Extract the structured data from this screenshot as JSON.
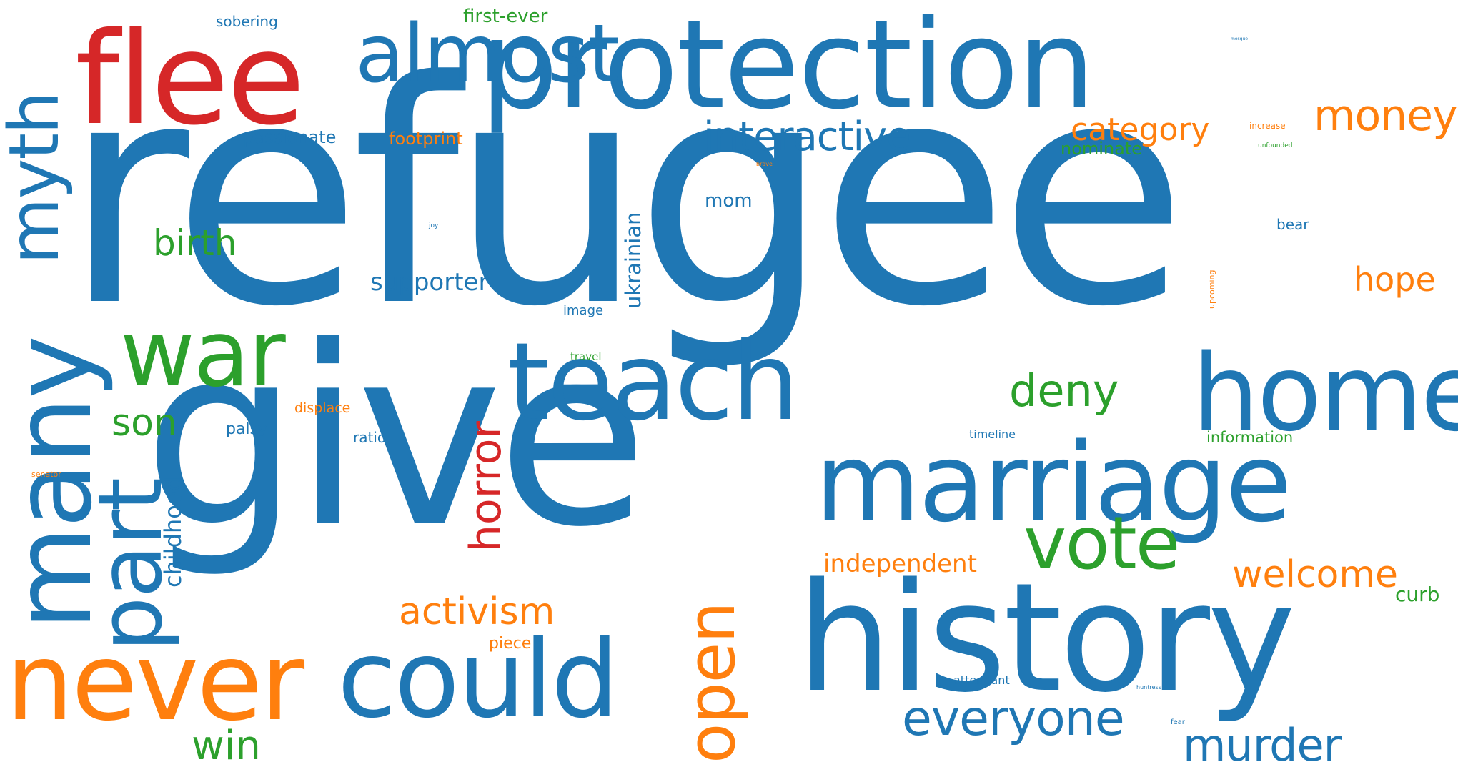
{
  "palette": {
    "blue": "#1f77b4",
    "orange": "#ff7f0e",
    "green": "#2ca02c",
    "red": "#d62728"
  },
  "words": {
    "refugee": "refugee",
    "give": "give",
    "protection": "protection",
    "history": "history",
    "marriage": "marriage",
    "home": "home",
    "flee": "flee",
    "could": "could",
    "never": "never",
    "many": "many",
    "teach": "teach",
    "almost": "almost",
    "war": "war",
    "vote": "vote",
    "part": "part",
    "myth": "myth",
    "open": "open",
    "everyone": "everyone",
    "murder": "murder",
    "interactive": "interactive",
    "money": "money",
    "horror": "horror",
    "activism": "activism",
    "deny": "deny",
    "welcome": "welcome",
    "category": "category",
    "win": "win",
    "birth": "birth",
    "son": "son",
    "hope": "hope",
    "supporter": "supporter",
    "independent": "independent",
    "childhood": "childhood",
    "ukrainian": "ukrainian",
    "first_ever": "first-ever",
    "footprint": "footprint",
    "passionate": "passionate",
    "curb": "curb",
    "nominate": "nominate",
    "mom": "mom",
    "sobering": "sobering",
    "information": "information",
    "bear": "bear",
    "piece": "piece",
    "palsy": "palsy",
    "displace": "displace",
    "ratio": "ratio",
    "image": "image",
    "timeline": "timeline",
    "attendant": "attendant",
    "travel": "travel",
    "increase": "increase",
    "upcoming": "upcoming",
    "senator": "senator",
    "joy": "joy",
    "unfounded": "unfounded",
    "fear": "fear",
    "huntress": "huntress",
    "brave": "brave",
    "mosque": "mosque"
  }
}
